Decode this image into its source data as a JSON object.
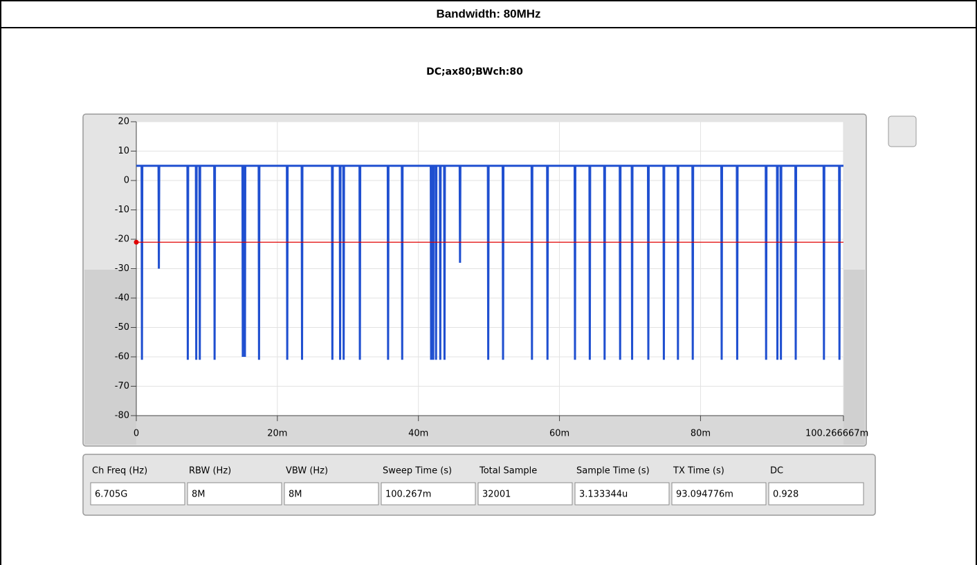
{
  "header": {
    "title": "Bandwidth: 80MHz"
  },
  "chart_data": {
    "type": "line",
    "title": "DC;ax80;BWch:80",
    "series": [
      {
        "color": "#1f4fd0",
        "x": [
          0,
          0.00075,
          0.0008,
          0.00085,
          0.00315,
          0.0032,
          0.00325,
          0.00725,
          0.0073,
          0.00735,
          0.00845,
          0.0085,
          0.00855,
          0.00895,
          0.009,
          0.00905,
          0.01105,
          0.0111,
          0.01115,
          0.01505,
          0.0151,
          0.01515,
          0.01535,
          0.0154,
          0.01545,
          0.01735,
          0.0174,
          0.01745,
          0.02135,
          0.0214,
          0.02145,
          0.02345,
          0.0235,
          0.02355,
          0.02775,
          0.0278,
          0.02785,
          0.02885,
          0.0289,
          0.02895,
          0.02935,
          0.0294,
          0.02945,
          0.03165,
          0.0317,
          0.03175,
          0.03565,
          0.0357,
          0.03575,
          0.03765,
          0.0377,
          0.03775,
          0.04175,
          0.0418,
          0.04185,
          0.04205,
          0.0421,
          0.04215,
          0.04245,
          0.0425,
          0.04255,
          0.04305,
          0.0431,
          0.04315,
          0.04365,
          0.0437,
          0.04375,
          0.04585,
          0.0459,
          0.04595,
          0.04985,
          0.0499,
          0.04995,
          0.05195,
          0.052,
          0.05205,
          0.05605,
          0.0561,
          0.05615,
          0.05825,
          0.0583,
          0.05835,
          0.06215,
          0.0622,
          0.06225,
          0.06425,
          0.0643,
          0.06435,
          0.06635,
          0.0664,
          0.06645,
          0.06855,
          0.0686,
          0.06865,
          0.07025,
          0.0703,
          0.07035,
          0.07255,
          0.0726,
          0.07265,
          0.07475,
          0.0748,
          0.07485,
          0.07675,
          0.0768,
          0.07685,
          0.07885,
          0.0789,
          0.07895,
          0.08295,
          0.083,
          0.08305,
          0.08515,
          0.0852,
          0.08525,
          0.08925,
          0.0893,
          0.08935,
          0.09085,
          0.0909,
          0.09095,
          0.09135,
          0.0914,
          0.09145,
          0.09345,
          0.0935,
          0.09355,
          0.09745,
          0.0975,
          0.09755,
          0.09965,
          0.0997,
          0.09975,
          0.100266667
        ],
        "values": [
          5,
          5,
          -61,
          5,
          5,
          -30,
          5,
          5,
          -61,
          5,
          5,
          -61,
          5,
          5,
          -61,
          5,
          5,
          -61,
          5,
          5,
          -60,
          5,
          5,
          -60,
          5,
          5,
          -61,
          5,
          5,
          -61,
          5,
          5,
          -61,
          5,
          5,
          -61,
          5,
          5,
          -61,
          5,
          5,
          -61,
          5,
          5,
          -61,
          5,
          5,
          -61,
          5,
          5,
          -61,
          5,
          5,
          -61,
          5,
          5,
          -61,
          5,
          5,
          -61,
          5,
          5,
          -61,
          5,
          5,
          -61,
          5,
          5,
          -28,
          5,
          5,
          -61,
          5,
          5,
          -61,
          5,
          5,
          -61,
          5,
          5,
          -61,
          5,
          5,
          -61,
          5,
          5,
          -61,
          5,
          5,
          -61,
          5,
          5,
          -61,
          5,
          5,
          -61,
          5,
          5,
          -61,
          5,
          5,
          -61,
          5,
          5,
          -61,
          5,
          5,
          -61,
          5,
          5,
          -61,
          5,
          5,
          -61,
          5,
          5,
          -61,
          5,
          5,
          -61,
          5,
          5,
          -61,
          5,
          5,
          -61,
          5,
          5,
          -61,
          5,
          5,
          -61,
          5,
          5
        ]
      }
    ],
    "reference_line": {
      "value": -21,
      "color": "#e00000"
    },
    "xlim": [
      0,
      0.100266667
    ],
    "xticks": [
      0,
      {
        "value": 0.02,
        "label": "20m"
      },
      {
        "value": 0.04,
        "label": "40m"
      },
      {
        "value": 0.06,
        "label": "60m"
      },
      {
        "value": 0.08,
        "label": "80m"
      },
      {
        "value": 0.100266667,
        "label": "100.266667m"
      }
    ],
    "ylim": [
      -80,
      20
    ],
    "yticks": [
      20,
      10,
      0,
      -10,
      -20,
      -30,
      -40,
      -50,
      -60,
      -70,
      -80
    ],
    "grid": true
  },
  "table": {
    "columns": [
      {
        "label": "Ch Freq (Hz)",
        "value": "6.705G"
      },
      {
        "label": "RBW (Hz)",
        "value": "8M"
      },
      {
        "label": "VBW (Hz)",
        "value": "8M"
      },
      {
        "label": "Sweep Time (s)",
        "value": "100.267m"
      },
      {
        "label": "Total Sample",
        "value": "32001"
      },
      {
        "label": "Sample Time (s)",
        "value": "3.133344u"
      },
      {
        "label": "TX Time (s)",
        "value": "93.094776m"
      },
      {
        "label": "DC",
        "value": "0.928"
      }
    ]
  }
}
